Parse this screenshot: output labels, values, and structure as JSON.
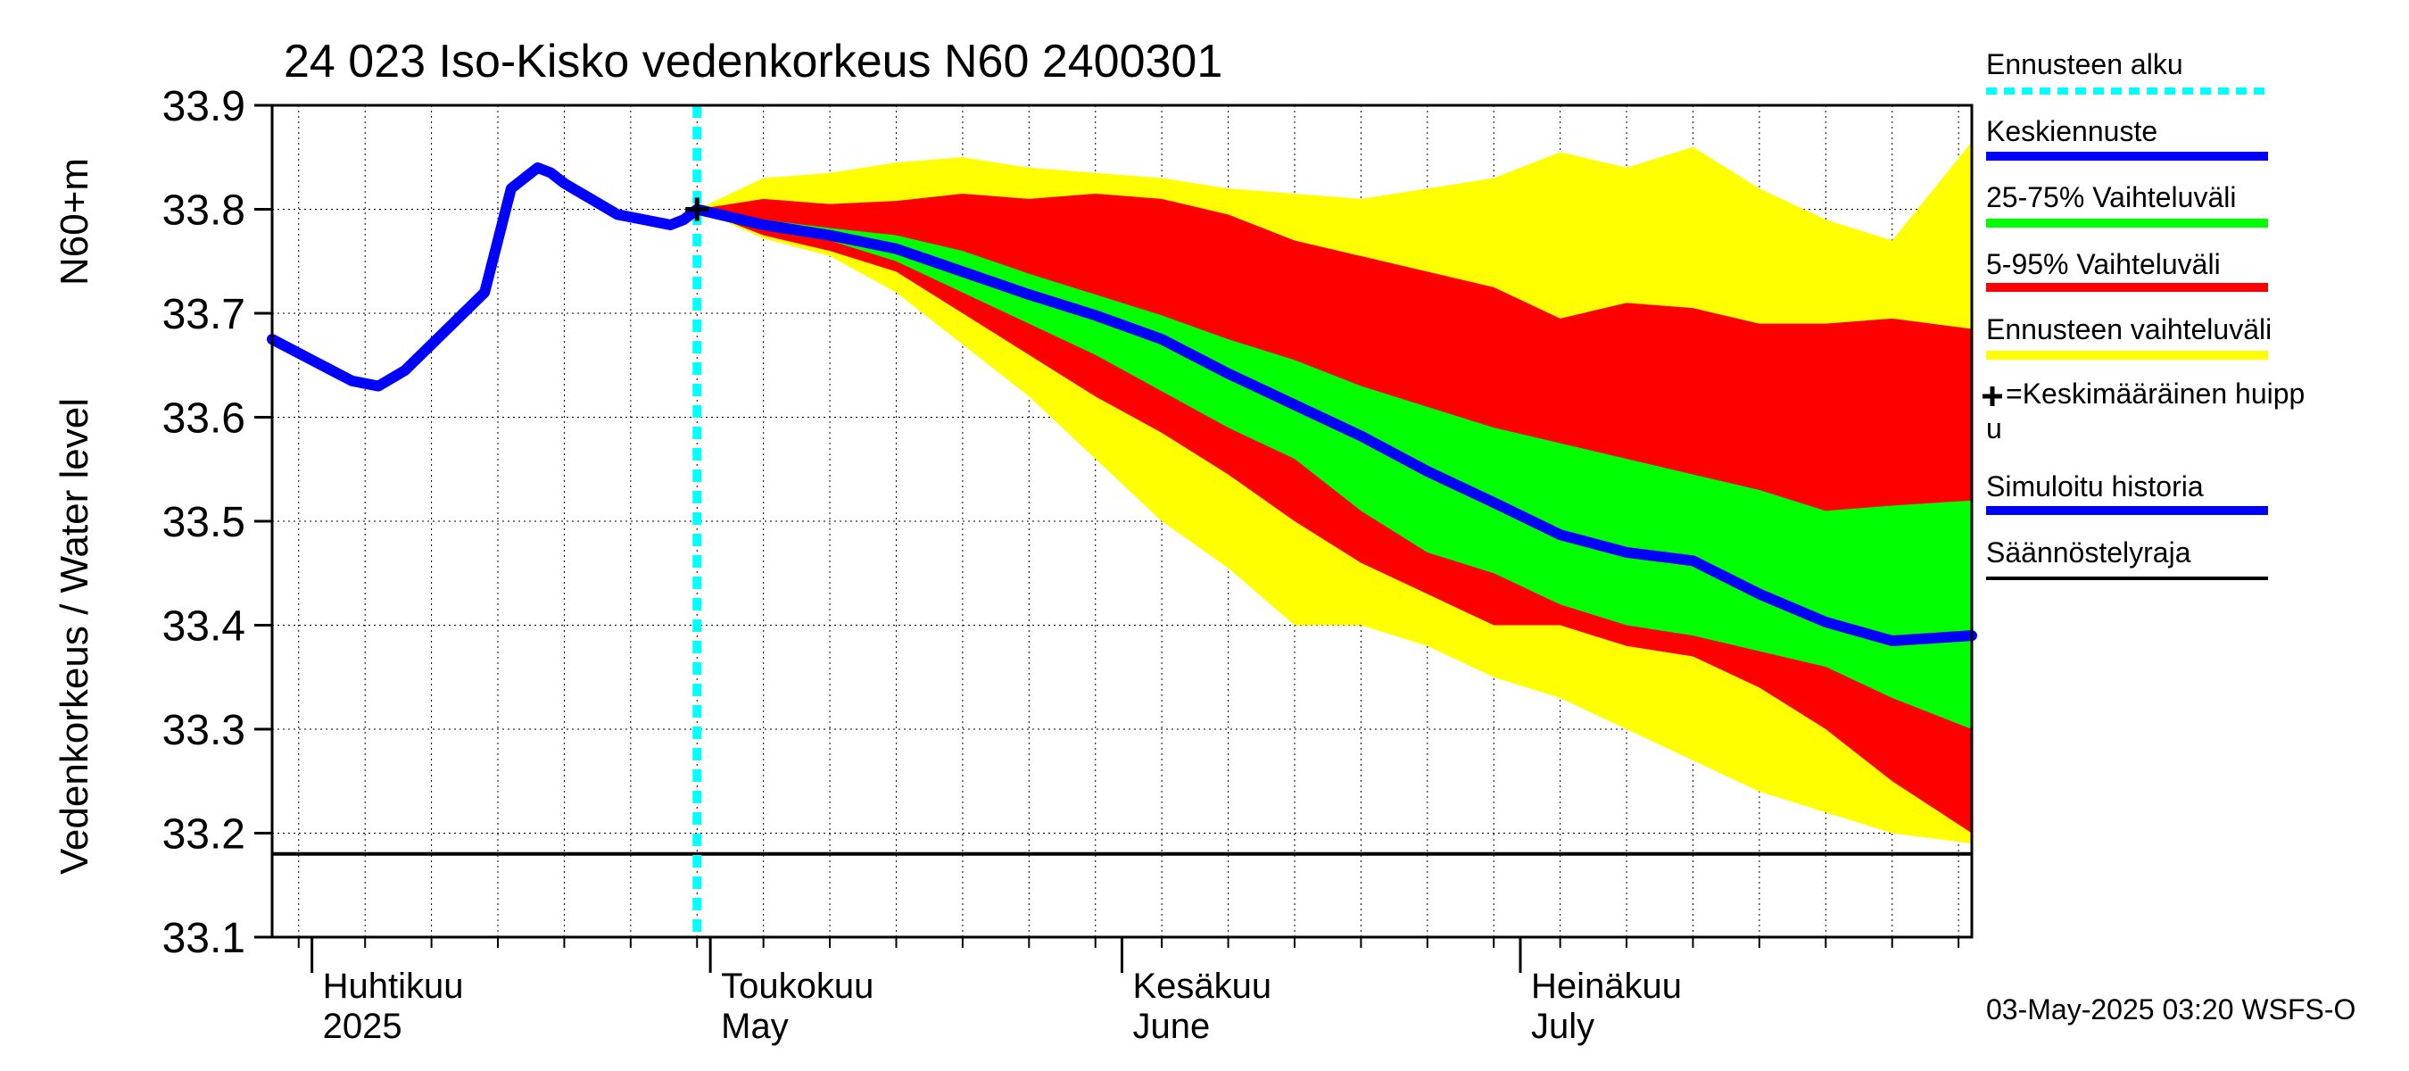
{
  "chart_data": {
    "type": "area",
    "title": "24 023 Iso-Kisko vedenkorkeus N60 2400301",
    "ylabel_left": "Vedenkorkeus / Water level",
    "ylabel_right": "N60+m",
    "ylim": [
      33.1,
      33.9
    ],
    "yticks": [
      "33.1",
      "33.2",
      "33.3",
      "33.4",
      "33.5",
      "33.6",
      "33.7",
      "33.8",
      "33.9"
    ],
    "x_range": [
      "2025-03-29",
      "2025-08-04"
    ],
    "month_labels": [
      {
        "date": "2025-04-01",
        "fi": "Huhtikuu",
        "en": "2025"
      },
      {
        "date": "2025-05-01",
        "fi": "Toukokuu",
        "en": "May"
      },
      {
        "date": "2025-06-01",
        "fi": "Kesäkuu",
        "en": "June"
      },
      {
        "date": "2025-07-01",
        "fi": "Heinäkuu",
        "en": "July"
      }
    ],
    "grid": true,
    "forecast_start": "2025-04-30",
    "regulation_limit": 33.18,
    "mean_peak": {
      "date": "2025-04-30",
      "value": 33.8
    },
    "history": {
      "name": "Simuloitu historia",
      "x": [
        "2025-03-29",
        "2025-04-01",
        "2025-04-04",
        "2025-04-06",
        "2025-04-08",
        "2025-04-10",
        "2025-04-12",
        "2025-04-14",
        "2025-04-16",
        "2025-04-18",
        "2025-04-19",
        "2025-04-20",
        "2025-04-22",
        "2025-04-24",
        "2025-04-26",
        "2025-04-28",
        "2025-04-29",
        "2025-04-30"
      ],
      "y": [
        33.675,
        33.655,
        33.635,
        33.63,
        33.645,
        33.67,
        33.695,
        33.72,
        33.82,
        33.84,
        33.835,
        33.825,
        33.81,
        33.795,
        33.79,
        33.785,
        33.79,
        33.8
      ]
    },
    "median": {
      "name": "Keskiennuste",
      "x": [
        "2025-04-30",
        "2025-05-05",
        "2025-05-10",
        "2025-05-15",
        "2025-05-20",
        "2025-05-25",
        "2025-05-30",
        "2025-06-04",
        "2025-06-09",
        "2025-06-14",
        "2025-06-19",
        "2025-06-24",
        "2025-06-29",
        "2025-07-04",
        "2025-07-09",
        "2025-07-14",
        "2025-07-19",
        "2025-07-24",
        "2025-07-29",
        "2025-08-04"
      ],
      "y": [
        33.8,
        33.785,
        33.775,
        33.762,
        33.74,
        33.718,
        33.698,
        33.675,
        33.642,
        33.612,
        33.582,
        33.548,
        33.518,
        33.487,
        33.47,
        33.462,
        33.43,
        33.403,
        33.385,
        33.39
      ]
    },
    "band_25_75": {
      "name": "25-75% Vaihteluväli",
      "x": [
        "2025-04-30",
        "2025-05-05",
        "2025-05-10",
        "2025-05-15",
        "2025-05-20",
        "2025-05-25",
        "2025-05-30",
        "2025-06-04",
        "2025-06-09",
        "2025-06-14",
        "2025-06-19",
        "2025-06-24",
        "2025-06-29",
        "2025-07-04",
        "2025-07-09",
        "2025-07-14",
        "2025-07-19",
        "2025-07-24",
        "2025-07-29",
        "2025-08-04"
      ],
      "lower": [
        33.8,
        33.782,
        33.77,
        33.75,
        33.72,
        33.69,
        33.66,
        33.625,
        33.59,
        33.56,
        33.51,
        33.47,
        33.45,
        33.42,
        33.4,
        33.39,
        33.375,
        33.36,
        33.33,
        33.3
      ],
      "upper": [
        33.8,
        33.79,
        33.782,
        33.775,
        33.76,
        33.738,
        33.718,
        33.698,
        33.675,
        33.655,
        33.63,
        33.61,
        33.59,
        33.575,
        33.56,
        33.545,
        33.53,
        33.51,
        33.515,
        33.52
      ]
    },
    "band_5_95": {
      "name": "5-95% Vaihteluväli",
      "x": [
        "2025-04-30",
        "2025-05-05",
        "2025-05-10",
        "2025-05-15",
        "2025-05-20",
        "2025-05-25",
        "2025-05-30",
        "2025-06-04",
        "2025-06-09",
        "2025-06-14",
        "2025-06-19",
        "2025-06-24",
        "2025-06-29",
        "2025-07-04",
        "2025-07-09",
        "2025-07-14",
        "2025-07-19",
        "2025-07-24",
        "2025-07-29",
        "2025-08-04"
      ],
      "lower": [
        33.8,
        33.775,
        33.76,
        33.74,
        33.7,
        33.66,
        33.62,
        33.585,
        33.545,
        33.5,
        33.46,
        33.43,
        33.4,
        33.4,
        33.38,
        33.37,
        33.34,
        33.3,
        33.25,
        33.2
      ],
      "upper": [
        33.8,
        33.81,
        33.805,
        33.808,
        33.815,
        33.81,
        33.815,
        33.81,
        33.795,
        33.77,
        33.755,
        33.74,
        33.725,
        33.695,
        33.71,
        33.705,
        33.69,
        33.69,
        33.695,
        33.685
      ]
    },
    "band_full": {
      "name": "Ennusteen vaihteluväli",
      "x": [
        "2025-04-30",
        "2025-05-05",
        "2025-05-10",
        "2025-05-15",
        "2025-05-20",
        "2025-05-25",
        "2025-05-30",
        "2025-06-04",
        "2025-06-09",
        "2025-06-14",
        "2025-06-19",
        "2025-06-24",
        "2025-06-29",
        "2025-07-04",
        "2025-07-09",
        "2025-07-14",
        "2025-07-19",
        "2025-07-24",
        "2025-07-29",
        "2025-08-04"
      ],
      "lower": [
        33.8,
        33.772,
        33.755,
        33.72,
        33.67,
        33.62,
        33.56,
        33.5,
        33.455,
        33.4,
        33.4,
        33.38,
        33.35,
        33.33,
        33.3,
        33.27,
        33.24,
        33.22,
        33.2,
        33.19
      ],
      "upper": [
        33.8,
        33.83,
        33.835,
        33.845,
        33.85,
        33.84,
        33.835,
        33.83,
        33.82,
        33.815,
        33.81,
        33.82,
        33.83,
        33.855,
        33.84,
        33.86,
        33.82,
        33.79,
        33.77,
        33.865
      ]
    }
  },
  "legend": [
    {
      "label": "Ennusteen alku",
      "color": "#00ffff",
      "style": "dotted"
    },
    {
      "label": "Keskiennuste",
      "color": "#0000ff",
      "style": "solid"
    },
    {
      "label": "25-75% Vaihteluväli",
      "color": "#00ff00",
      "style": "solid"
    },
    {
      "label": "5-95% Vaihteluväli",
      "color": "#ff0000",
      "style": "solid"
    },
    {
      "label": "Ennusteen vaihteluväli",
      "color": "#ffff00",
      "style": "solid"
    },
    {
      "label": "=Keskimääräinen huipp",
      "label2": "u",
      "color": "#000000",
      "style": "plus"
    },
    {
      "label": "Simuloitu historia",
      "color": "#0000ff",
      "style": "solid"
    },
    {
      "label": "Säännöstelyraja",
      "color": "#000000",
      "style": "solid"
    }
  ],
  "footer": {
    "timestamp": "03-May-2025 03:20 WSFS-O"
  },
  "colors": {
    "yellow": "#ffff00",
    "red": "#ff0000",
    "green": "#00ff00",
    "blue": "#0000ff",
    "cyan": "#00ffff",
    "black": "#000000"
  }
}
